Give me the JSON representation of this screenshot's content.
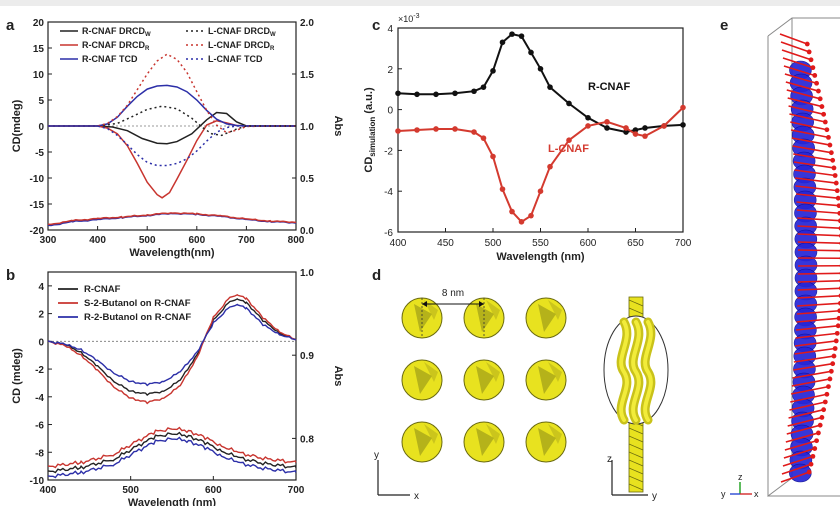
{
  "panels": {
    "a": {
      "letter": "a"
    },
    "b": {
      "letter": "b"
    },
    "c": {
      "letter": "c"
    },
    "d": {
      "letter": "d",
      "spacing_label": "8 nm",
      "axis_y": "y",
      "axis_x": "x",
      "axis_z": "z",
      "axis_y2": "y"
    },
    "e": {
      "letter": "e",
      "axis_y": "y",
      "axis_z": "z",
      "axis_x": "x"
    }
  },
  "chart_data": [
    {
      "id": "a",
      "type": "line",
      "xlabel": "Wavelength(nm)",
      "ylabel": "CD(mdeg)",
      "y2label": "Abs",
      "xlim": [
        300,
        800
      ],
      "ylim": [
        -20,
        20
      ],
      "y2lim": [
        0.0,
        2.0
      ],
      "xticks": [
        300,
        400,
        500,
        600,
        700,
        800
      ],
      "yticks": [
        -20,
        -15,
        -10,
        -5,
        0,
        5,
        10,
        15,
        20
      ],
      "y2ticks": [
        "0.0",
        "0.5",
        "1.0",
        "1.5",
        "2.0"
      ],
      "legend": [
        {
          "label": "R-CNAF DRCD",
          "sub": "W",
          "color": "#222222",
          "dash": false
        },
        {
          "label": "R-CNAF DRCD",
          "sub": "R",
          "color": "#c8352f",
          "dash": false
        },
        {
          "label": "R-CNAF TCD",
          "sub": "",
          "color": "#2c2fa8",
          "dash": false
        },
        {
          "label": "L-CNAF DRCD",
          "sub": "W",
          "color": "#222222",
          "dash": true
        },
        {
          "label": "L-CNAF DRCD",
          "sub": "R",
          "color": "#c8352f",
          "dash": true
        },
        {
          "label": "L-CNAF TCD",
          "sub": "",
          "color": "#2c2fa8",
          "dash": true
        }
      ],
      "series": [
        {
          "name": "R-CNAF DRCD_W",
          "axis": "left",
          "color": "#222222",
          "dash": false,
          "x": [
            300,
            350,
            400,
            430,
            460,
            490,
            520,
            540,
            560,
            590,
            620,
            640,
            660,
            680,
            700,
            750,
            800
          ],
          "y": [
            0,
            0,
            0,
            -0.2,
            -0.9,
            -2.4,
            -3.3,
            -3.4,
            -3.0,
            -1.5,
            1.2,
            2.6,
            2.4,
            0.8,
            0,
            0,
            0
          ]
        },
        {
          "name": "R-CNAF DRCD_R",
          "axis": "left",
          "color": "#c8352f",
          "dash": false,
          "x": [
            300,
            350,
            400,
            420,
            440,
            460,
            480,
            500,
            520,
            530,
            545,
            560,
            580,
            600,
            620,
            640,
            660,
            680,
            700,
            750,
            800
          ],
          "y": [
            0,
            0,
            0,
            -0.4,
            -1.5,
            -3.8,
            -7.2,
            -10.8,
            -13.2,
            -13.8,
            -12.8,
            -10.2,
            -6.6,
            -2.8,
            0.2,
            1.0,
            0.6,
            0.1,
            0,
            0,
            0
          ]
        },
        {
          "name": "R-CNAF TCD",
          "axis": "left",
          "color": "#2c2fa8",
          "dash": false,
          "x": [
            300,
            350,
            400,
            420,
            440,
            460,
            480,
            500,
            520,
            540,
            560,
            580,
            600,
            620,
            640,
            660,
            680,
            700,
            750,
            800
          ],
          "y": [
            0,
            0,
            0,
            0.4,
            1.7,
            3.8,
            5.7,
            7.1,
            7.7,
            7.8,
            7.5,
            6.6,
            5.0,
            3.0,
            1.3,
            0.4,
            0.1,
            0,
            0,
            0
          ]
        },
        {
          "name": "L-CNAF DRCD_W",
          "axis": "left",
          "color": "#222222",
          "dash": true,
          "x": [
            300,
            350,
            400,
            440,
            470,
            500,
            530,
            560,
            590,
            610,
            630,
            650,
            680,
            700,
            750,
            800
          ],
          "y": [
            0,
            0,
            0,
            0.5,
            1.8,
            3.2,
            3.8,
            3.3,
            1.5,
            -0.2,
            -1.5,
            -1.8,
            -0.6,
            0,
            0,
            0
          ]
        },
        {
          "name": "L-CNAF DRCD_R",
          "axis": "left",
          "color": "#c8352f",
          "dash": true,
          "x": [
            300,
            350,
            400,
            420,
            440,
            460,
            480,
            500,
            520,
            540,
            560,
            580,
            600,
            620,
            640,
            660,
            680,
            700,
            750,
            800
          ],
          "y": [
            0,
            0,
            0,
            0.5,
            1.8,
            4.0,
            7.0,
            10.0,
            12.5,
            13.8,
            12.8,
            10.3,
            6.6,
            3.0,
            0.2,
            -1.3,
            -0.8,
            -0.1,
            0,
            0
          ]
        },
        {
          "name": "L-CNAF TCD",
          "axis": "left",
          "color": "#2c2fa8",
          "dash": true,
          "x": [
            300,
            350,
            400,
            420,
            440,
            460,
            480,
            500,
            520,
            540,
            560,
            580,
            600,
            620,
            640,
            660,
            680,
            700,
            750,
            800
          ],
          "y": [
            0,
            0,
            0,
            -0.5,
            -1.8,
            -3.6,
            -5.5,
            -7.0,
            -7.6,
            -7.6,
            -7.2,
            -6.3,
            -4.8,
            -2.9,
            -1.2,
            -0.3,
            0,
            0,
            0,
            0
          ]
        },
        {
          "name": "R-CNAF Abs",
          "axis": "right",
          "color": "#2c2fa8",
          "dash": false,
          "x": [
            300,
            350,
            400,
            450,
            500,
            550,
            600,
            650,
            700,
            750,
            800
          ],
          "y": [
            0.04,
            0.08,
            0.1,
            0.12,
            0.14,
            0.16,
            0.15,
            0.13,
            0.1,
            0.08,
            0.07
          ]
        },
        {
          "name": "R-CNAF Abs 2",
          "axis": "right",
          "color": "#c8352f",
          "dash": false,
          "x": [
            300,
            350,
            400,
            450,
            500,
            550,
            600,
            650,
            700,
            750,
            800
          ],
          "y": [
            0.05,
            0.09,
            0.11,
            0.125,
            0.145,
            0.165,
            0.155,
            0.135,
            0.105,
            0.085,
            0.075
          ]
        }
      ]
    },
    {
      "id": "b",
      "type": "line",
      "xlabel": "Wavelength (nm)",
      "ylabel": "CD (mdeg)",
      "y2label": "Abs",
      "xlim": [
        400,
        700
      ],
      "ylim": [
        -10,
        5
      ],
      "y2lim": [
        0.75,
        1.0
      ],
      "xticks": [
        400,
        500,
        600,
        700
      ],
      "yticks": [
        -10,
        -8,
        -6,
        -4,
        -2,
        0,
        2,
        4
      ],
      "y2ticks": [
        "0.8",
        "0.9",
        "1.0"
      ],
      "y2tick_values": [
        0.8,
        0.9,
        1.0
      ],
      "legend": [
        {
          "label": "R-CNAF",
          "color": "#222222"
        },
        {
          "label": "S-2-Butanol on R-CNAF",
          "color": "#c8352f"
        },
        {
          "label": "R-2-Butanol on R-CNAF",
          "color": "#2c2fa8"
        }
      ],
      "series": [
        {
          "name": "R-CNAF",
          "axis": "left",
          "color": "#222222",
          "x": [
            400,
            420,
            440,
            460,
            480,
            500,
            520,
            540,
            560,
            580,
            600,
            620,
            630,
            640,
            660,
            680,
            700
          ],
          "y": [
            0,
            -0.2,
            -0.8,
            -1.8,
            -2.9,
            -3.6,
            -3.8,
            -3.6,
            -2.8,
            -1.0,
            1.5,
            2.9,
            3.0,
            2.8,
            1.5,
            0.6,
            0.1
          ]
        },
        {
          "name": "S-2-Butanol on R-CNAF",
          "axis": "left",
          "color": "#c8352f",
          "x": [
            400,
            420,
            440,
            460,
            480,
            500,
            520,
            540,
            560,
            580,
            600,
            620,
            630,
            640,
            660,
            680,
            700
          ],
          "y": [
            0,
            -0.3,
            -1.0,
            -2.1,
            -3.3,
            -4.1,
            -4.4,
            -4.1,
            -3.2,
            -1.2,
            1.7,
            3.2,
            3.3,
            3.1,
            1.7,
            0.7,
            0.1
          ]
        },
        {
          "name": "R-2-Butanol on R-CNAF",
          "axis": "left",
          "color": "#2c2fa8",
          "x": [
            400,
            420,
            440,
            460,
            480,
            500,
            520,
            540,
            560,
            580,
            600,
            620,
            630,
            640,
            660,
            680,
            700
          ],
          "y": [
            0,
            -0.2,
            -0.6,
            -1.4,
            -2.3,
            -2.9,
            -3.1,
            -2.9,
            -2.2,
            -0.8,
            1.3,
            2.5,
            2.6,
            2.4,
            1.2,
            0.5,
            0.1
          ]
        },
        {
          "name": "R-CNAF Abs",
          "axis": "right",
          "color": "#222222",
          "x": [
            400,
            440,
            480,
            510,
            530,
            550,
            570,
            590,
            610,
            630,
            660,
            700
          ],
          "y": [
            0.76,
            0.765,
            0.775,
            0.792,
            0.802,
            0.806,
            0.803,
            0.795,
            0.785,
            0.777,
            0.77,
            0.765
          ]
        },
        {
          "name": "S-2-Butanol Abs",
          "axis": "right",
          "color": "#c8352f",
          "x": [
            400,
            440,
            480,
            510,
            530,
            550,
            570,
            590,
            610,
            630,
            660,
            700
          ],
          "y": [
            0.766,
            0.771,
            0.781,
            0.798,
            0.808,
            0.812,
            0.809,
            0.801,
            0.791,
            0.783,
            0.776,
            0.771
          ]
        },
        {
          "name": "R-2-Butanol Abs",
          "axis": "right",
          "color": "#2c2fa8",
          "x": [
            400,
            440,
            480,
            510,
            530,
            550,
            570,
            590,
            610,
            630,
            660,
            700
          ],
          "y": [
            0.754,
            0.759,
            0.769,
            0.786,
            0.796,
            0.8,
            0.797,
            0.789,
            0.779,
            0.771,
            0.764,
            0.759
          ]
        }
      ]
    },
    {
      "id": "c",
      "type": "line",
      "xlabel": "Wavelength (nm)",
      "ylabel": "CD",
      "ylabel_sub": "simulation",
      "ylabel_unit": "(a.u.)",
      "scale_note": "×10",
      "scale_exp": "-3",
      "xlim": [
        400,
        700
      ],
      "ylim": [
        -6,
        4
      ],
      "xticks": [
        400,
        450,
        500,
        550,
        600,
        650,
        700
      ],
      "yticks": [
        -6,
        -4,
        -2,
        0,
        2,
        4
      ],
      "series": [
        {
          "name": "R-CNAF",
          "color": "#111111",
          "label": "R-CNAF",
          "x": [
            400,
            420,
            440,
            460,
            480,
            490,
            500,
            510,
            520,
            530,
            540,
            550,
            560,
            580,
            600,
            620,
            640,
            650,
            660,
            680,
            700
          ],
          "y": [
            0.8,
            0.75,
            0.75,
            0.8,
            0.9,
            1.1,
            1.9,
            3.3,
            3.7,
            3.6,
            2.8,
            2.0,
            1.1,
            0.3,
            -0.4,
            -0.9,
            -1.1,
            -1.0,
            -0.9,
            -0.8,
            -0.75
          ]
        },
        {
          "name": "L-CNAF",
          "color": "#d43a2f",
          "label": "L-CNAF",
          "x": [
            400,
            420,
            440,
            460,
            480,
            490,
            500,
            510,
            520,
            530,
            540,
            550,
            560,
            580,
            600,
            620,
            640,
            650,
            660,
            680,
            700
          ],
          "y": [
            -1.05,
            -1.0,
            -0.95,
            -0.95,
            -1.1,
            -1.4,
            -2.3,
            -3.9,
            -5.0,
            -5.5,
            -5.2,
            -4.0,
            -2.8,
            -1.5,
            -0.8,
            -0.6,
            -0.9,
            -1.2,
            -1.3,
            -0.8,
            0.1
          ]
        }
      ]
    }
  ]
}
